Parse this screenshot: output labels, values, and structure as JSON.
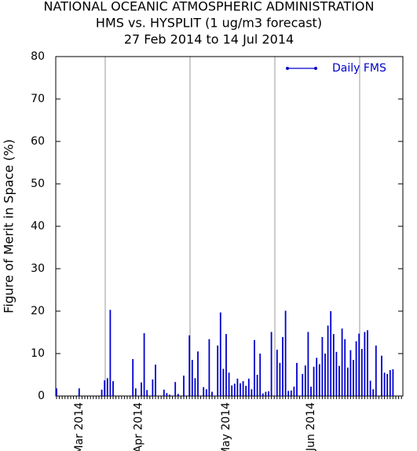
{
  "chart_data": {
    "type": "bar",
    "title": "NATIONAL OCEANIC ATMOSPHERIC ADMINISTRATION",
    "subtitle": "HMS vs. HYSPLIT (1 ug/m3 forecast)",
    "date_range": "27 Feb 2014 to 14 Jul 2014",
    "y_label": "Figure of Merit in Space (%)",
    "categories": [
      null,
      null,
      null,
      null,
      null,
      null,
      null,
      null,
      "Mar 2014",
      null,
      null,
      null,
      null,
      null,
      null,
      null,
      null,
      null,
      null,
      null,
      null,
      null,
      null,
      null,
      null,
      null,
      null,
      null,
      null,
      "Apr 2014",
      null,
      null,
      null,
      null,
      null,
      null,
      null,
      null,
      null,
      null,
      null,
      null,
      null,
      null,
      null,
      null,
      null,
      null,
      null,
      null,
      null,
      null,
      null,
      null,
      null,
      null,
      null,
      null,
      null,
      null,
      "May 2014",
      null,
      null,
      null,
      null,
      null,
      null,
      null,
      null,
      null,
      null,
      null,
      null,
      null,
      null,
      null,
      null,
      null,
      null,
      null,
      null,
      null,
      null,
      null,
      null,
      null,
      null,
      null,
      null,
      null,
      "Jun 2014",
      null,
      null,
      null,
      null,
      null,
      null,
      null,
      null,
      null,
      null,
      null,
      null,
      null,
      null,
      null,
      null,
      null,
      null,
      null,
      null,
      null,
      null,
      null,
      null,
      null,
      null,
      null,
      null,
      null,
      null,
      null,
      null
    ],
    "series": [
      {
        "name": "Daily FMS",
        "color": "#0000cc",
        "values": [
          1.8,
          null,
          null,
          null,
          null,
          null,
          null,
          null,
          1.8,
          null,
          null,
          null,
          null,
          null,
          null,
          null,
          1.5,
          3.7,
          4.2,
          20.3,
          3.5,
          null,
          null,
          null,
          null,
          null,
          null,
          8.7,
          1.8,
          null,
          3.2,
          14.8,
          1.4,
          null,
          3.9,
          7.4,
          null,
          null,
          1.5,
          0.7,
          0.3,
          null,
          3.3,
          0.5,
          null,
          4.8,
          null,
          14.3,
          8.5,
          4.2,
          10.5,
          null,
          2.1,
          1.6,
          13.4,
          1.0,
          null,
          11.9,
          19.7,
          6.4,
          14.6,
          5.5,
          2.5,
          2.9,
          4.1,
          3.0,
          3.5,
          2.4,
          4.1,
          1.6,
          13.2,
          5.0,
          10.0,
          0.6,
          1.0,
          1.1,
          15.1,
          null,
          10.9,
          7.8,
          13.9,
          20.1,
          1.2,
          1.3,
          2.2,
          7.8,
          null,
          5.2,
          7.2,
          15.1,
          2.2,
          6.9,
          9.0,
          7.5,
          13.9,
          10.0,
          16.6,
          20.0,
          14.6,
          10.4,
          7.1,
          15.9,
          13.4,
          6.7,
          10.8,
          8.5,
          12.9,
          14.7,
          11.1,
          15.1,
          15.5,
          3.6,
          1.6,
          11.9,
          null,
          9.5,
          5.5,
          5.2,
          6.1,
          6.3,
          null,
          null,
          null
        ]
      }
    ],
    "ylim": [
      0,
      80
    ],
    "yticks": [
      0,
      10,
      20,
      30,
      40,
      50,
      60,
      70,
      80
    ],
    "legend": "top-right"
  }
}
